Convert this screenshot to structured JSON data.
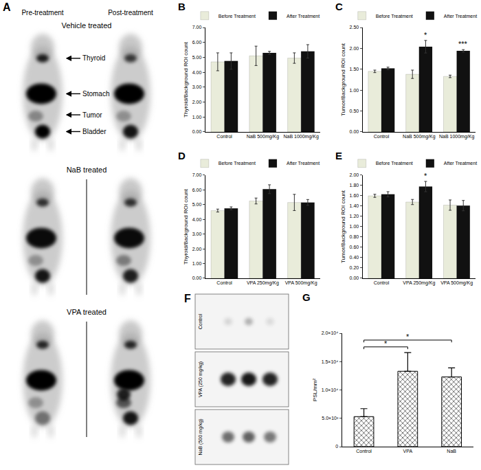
{
  "panel_a": {
    "panel": "A",
    "columns": [
      "Pre-treatment",
      "Post-treatment"
    ],
    "rows": [
      "Vehicle treated",
      "NaB treated",
      "VPA treated"
    ],
    "organ_labels": [
      "Thyroid",
      "Stomach",
      "Tumor",
      "Bladder"
    ]
  },
  "panel_f": {
    "panel": "F",
    "rows": [
      "Control",
      "VPA (250 mg/kg)",
      "NaB (500 mg/kg)"
    ]
  },
  "chart_data": [
    {
      "panel": "B",
      "type": "bar",
      "grid": false,
      "legend": "top",
      "ylabel": "Thyroid/Background ROI count",
      "categories": [
        "Control",
        "NaB 500mg/Kg",
        "NaB 1000mg/Kg"
      ],
      "series": [
        {
          "name": "Before Treatment",
          "color": "#e9ecda",
          "values": [
            4.7,
            5.1,
            4.95
          ],
          "errors": [
            0.6,
            0.65,
            0.35
          ]
        },
        {
          "name": "After Treatment",
          "color": "#111111",
          "values": [
            4.75,
            5.3,
            5.4
          ],
          "errors": [
            0.55,
            0.1,
            0.45
          ]
        }
      ],
      "ylim": [
        0,
        7
      ],
      "yticks": [
        {
          "value": 0,
          "label": "0.00"
        },
        {
          "value": 1,
          "label": "1.00"
        },
        {
          "value": 2,
          "label": "2.00"
        },
        {
          "value": 3,
          "label": "3.00"
        },
        {
          "value": 4,
          "label": "4.00"
        },
        {
          "value": 5,
          "label": "5.00"
        },
        {
          "value": 6,
          "label": "6.00"
        },
        {
          "value": 7,
          "label": "7.00"
        }
      ]
    },
    {
      "panel": "C",
      "type": "bar",
      "grid": false,
      "legend": "top",
      "ylabel": "Tumor/Background ROI count",
      "categories": [
        "Control",
        "NaB 500mg/Kg",
        "NaB 1000mg/Kg"
      ],
      "series": [
        {
          "name": "Before Treatment",
          "color": "#e9ecda",
          "values": [
            1.45,
            1.38,
            1.33
          ],
          "errors": [
            0.03,
            0.1,
            0.03
          ]
        },
        {
          "name": "After Treatment",
          "color": "#111111",
          "values": [
            1.52,
            2.04,
            1.94
          ],
          "errors": [
            0.03,
            0.15,
            0.03
          ]
        }
      ],
      "annotations": [
        {
          "text": "*",
          "category": "NaB 500mg/Kg",
          "series": "After Treatment"
        },
        {
          "text": "***",
          "category": "NaB 1000mg/Kg",
          "series": "After Treatment"
        }
      ],
      "ylim": [
        0,
        2.5
      ],
      "yticks": [
        {
          "value": 0,
          "label": "0.00"
        },
        {
          "value": 0.5,
          "label": "0.50"
        },
        {
          "value": 1,
          "label": "1.00"
        },
        {
          "value": 1.5,
          "label": "1.50"
        },
        {
          "value": 2,
          "label": "2.00"
        },
        {
          "value": 2.5,
          "label": "2.50"
        }
      ]
    },
    {
      "panel": "D",
      "type": "bar",
      "grid": false,
      "legend": "top",
      "ylabel": "Thyroid/Background ROI count",
      "categories": [
        "Control",
        "VPA 250mg/Kg",
        "VPA 500mg/Kg"
      ],
      "series": [
        {
          "name": "Before Treatment",
          "color": "#e9ecda",
          "values": [
            4.6,
            5.25,
            5.15
          ],
          "errors": [
            0.1,
            0.2,
            0.55
          ]
        },
        {
          "name": "After Treatment",
          "color": "#111111",
          "values": [
            4.75,
            6.05,
            5.15
          ],
          "errors": [
            0.1,
            0.3,
            0.2
          ]
        }
      ],
      "ylim": [
        0,
        7
      ],
      "yticks": [
        {
          "value": 0,
          "label": "0.00"
        },
        {
          "value": 1,
          "label": "1.00"
        },
        {
          "value": 2,
          "label": "2.00"
        },
        {
          "value": 3,
          "label": "3.00"
        },
        {
          "value": 4,
          "label": "4.00"
        },
        {
          "value": 5,
          "label": "5.00"
        },
        {
          "value": 6,
          "label": "6.00"
        },
        {
          "value": 7,
          "label": "7.00"
        }
      ]
    },
    {
      "panel": "E",
      "type": "bar",
      "grid": false,
      "legend": "top",
      "ylabel": "Tumor/Background ROI count",
      "categories": [
        "Control",
        "VPA 250mg/Kg",
        "VPA 500mg/Kg"
      ],
      "series": [
        {
          "name": "Before Treatment",
          "color": "#e9ecda",
          "values": [
            1.6,
            1.48,
            1.42
          ],
          "errors": [
            0.03,
            0.05,
            0.1
          ]
        },
        {
          "name": "After Treatment",
          "color": "#111111",
          "values": [
            1.63,
            1.78,
            1.41
          ],
          "errors": [
            0.05,
            0.1,
            0.1
          ]
        }
      ],
      "annotations": [
        {
          "text": "*",
          "category": "VPA 250mg/Kg",
          "series": "After Treatment"
        }
      ],
      "ylim": [
        0,
        2
      ],
      "yticks": [
        {
          "value": 0,
          "label": "0.00"
        },
        {
          "value": 0.2,
          "label": "0.20"
        },
        {
          "value": 0.4,
          "label": "0.40"
        },
        {
          "value": 0.6,
          "label": "0.60"
        },
        {
          "value": 0.8,
          "label": "0.80"
        },
        {
          "value": 1,
          "label": "1.00"
        },
        {
          "value": 1.2,
          "label": "1.20"
        },
        {
          "value": 1.4,
          "label": "1.40"
        },
        {
          "value": 1.6,
          "label": "1.60"
        },
        {
          "value": 1.8,
          "label": "1.80"
        },
        {
          "value": 2,
          "label": "2.00"
        }
      ]
    },
    {
      "panel": "G",
      "type": "bar",
      "grid": false,
      "ylabel": "PSL/mm²",
      "categories": [
        "Control",
        "VPA",
        "NaB"
      ],
      "values": [
        5300,
        13300,
        12300
      ],
      "errors": [
        1400,
        3300,
        1600
      ],
      "color": "#c8c8c8",
      "comparisons": [
        {
          "from": "Control",
          "to": "VPA",
          "text": "*"
        },
        {
          "from": "Control",
          "to": "NaB",
          "text": "*"
        }
      ],
      "ylim": [
        0,
        20000
      ],
      "yticks": [
        0,
        {
          "value": 5000,
          "label": "5.0×10³"
        },
        {
          "value": 10000,
          "label": "1.0×10⁴"
        },
        {
          "value": 15000,
          "label": "1.5×10⁴"
        },
        {
          "value": 20000,
          "label": "2.0×10⁴"
        }
      ]
    }
  ]
}
